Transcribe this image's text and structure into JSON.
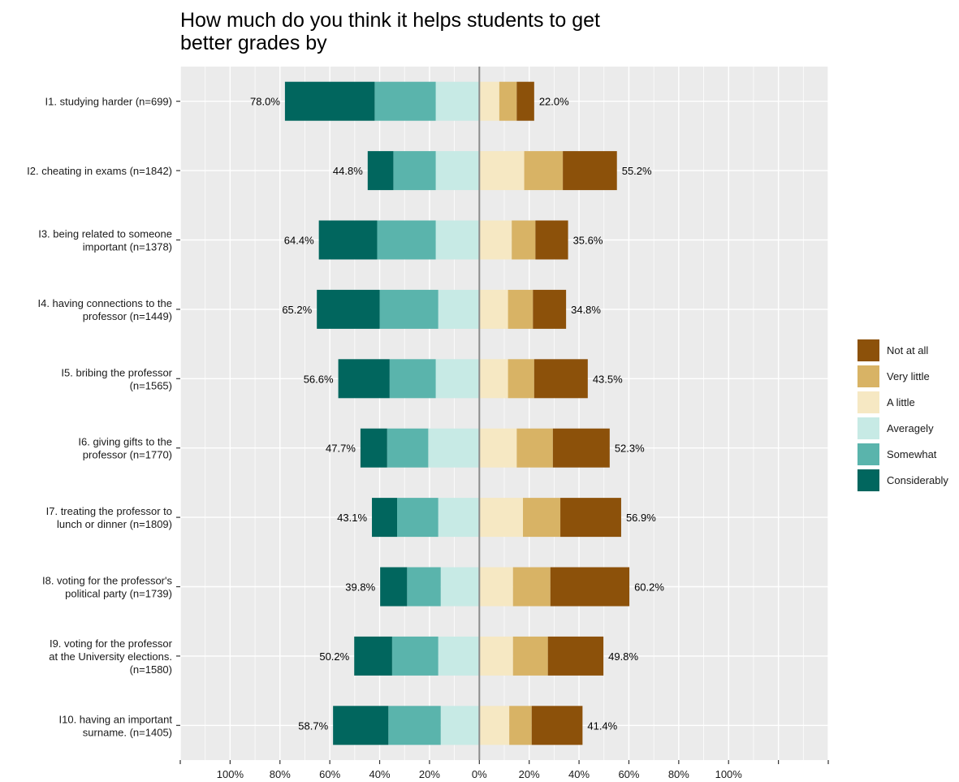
{
  "chart_data": {
    "type": "bar",
    "orientation": "horizontal-diverging",
    "title_lines": [
      "How much do you think it helps students to get",
      "better grades by"
    ],
    "categories": [
      {
        "lines": [
          "I1. studying harder (n=699)"
        ]
      },
      {
        "lines": [
          "I2. cheating in exams (n=1842)"
        ]
      },
      {
        "lines": [
          "I3. being related to someone",
          "important (n=1378)"
        ]
      },
      {
        "lines": [
          "I4. having connections to the",
          "professor (n=1449)"
        ]
      },
      {
        "lines": [
          "I5. bribing the professor",
          "(n=1565)"
        ]
      },
      {
        "lines": [
          "I6. giving gifts to the",
          "professor (n=1770)"
        ]
      },
      {
        "lines": [
          "I7. treating the professor to",
          "lunch or dinner (n=1809)"
        ]
      },
      {
        "lines": [
          "I8. voting for the professor's",
          "political party (n=1739)"
        ]
      },
      {
        "lines": [
          "I9. voting for the professor",
          "at the University elections.",
          "(n=1580)"
        ]
      },
      {
        "lines": [
          "I10. having an important",
          "surname. (n=1405)"
        ]
      }
    ],
    "left_series": [
      {
        "name": "Averagely",
        "color": "#c7eae5",
        "values": [
          17.5,
          17.5,
          17.5,
          16.5,
          17.5,
          20.5,
          16.5,
          15.5,
          16.5,
          15.5
        ]
      },
      {
        "name": "Somewhat",
        "color": "#5ab4ac",
        "values": [
          24.5,
          17.0,
          23.5,
          23.5,
          18.5,
          16.5,
          16.5,
          13.5,
          18.5,
          21.0
        ]
      },
      {
        "name": "Considerably",
        "color": "#01665e",
        "values": [
          36.0,
          10.3,
          23.4,
          25.2,
          20.6,
          10.7,
          10.1,
          10.8,
          15.2,
          22.2
        ]
      }
    ],
    "right_series": [
      {
        "name": "A little",
        "color": "#f6e8c3",
        "values": [
          8.0,
          18.0,
          13.0,
          11.5,
          11.5,
          15.0,
          17.5,
          13.5,
          13.5,
          12.0
        ]
      },
      {
        "name": "Very little",
        "color": "#d8b365",
        "values": [
          7.0,
          15.5,
          9.5,
          10.0,
          10.5,
          14.5,
          15.0,
          15.0,
          14.0,
          9.0
        ]
      },
      {
        "name": "Not at all",
        "color": "#8c510a",
        "values": [
          7.0,
          21.7,
          13.1,
          13.3,
          21.5,
          22.8,
          24.4,
          31.7,
          22.3,
          20.4
        ]
      }
    ],
    "left_totals": [
      "78.0%",
      "44.8%",
      "64.4%",
      "65.2%",
      "56.6%",
      "47.7%",
      "43.1%",
      "39.8%",
      "50.2%",
      "58.7%"
    ],
    "right_totals": [
      "22.0%",
      "55.2%",
      "35.6%",
      "34.8%",
      "43.5%",
      "52.3%",
      "56.9%",
      "60.2%",
      "49.8%",
      "41.4%"
    ],
    "x_ticks": [
      {
        "value": -100,
        "label": "100%"
      },
      {
        "value": -80,
        "label": "80%"
      },
      {
        "value": -60,
        "label": "60%"
      },
      {
        "value": -40,
        "label": "40%"
      },
      {
        "value": -20,
        "label": "20%"
      },
      {
        "value": 0,
        "label": "0%"
      },
      {
        "value": 20,
        "label": "20%"
      },
      {
        "value": 40,
        "label": "40%"
      },
      {
        "value": 60,
        "label": "60%"
      },
      {
        "value": 80,
        "label": "80%"
      },
      {
        "value": 100,
        "label": "100%"
      }
    ],
    "xlim": [
      -120,
      140
    ],
    "legend": {
      "placement": "right",
      "entries": [
        {
          "name": "Not at all",
          "color": "#8c510a"
        },
        {
          "name": "Very little",
          "color": "#d8b365"
        },
        {
          "name": "A little",
          "color": "#f6e8c3"
        },
        {
          "name": "Averagely",
          "color": "#c7eae5"
        },
        {
          "name": "Somewhat",
          "color": "#5ab4ac"
        },
        {
          "name": "Considerably",
          "color": "#01665e"
        }
      ]
    },
    "grid": true,
    "panel_background": "#ebebeb",
    "grid_color": "#ffffff",
    "zero_line_color": "#8c8c8c"
  }
}
